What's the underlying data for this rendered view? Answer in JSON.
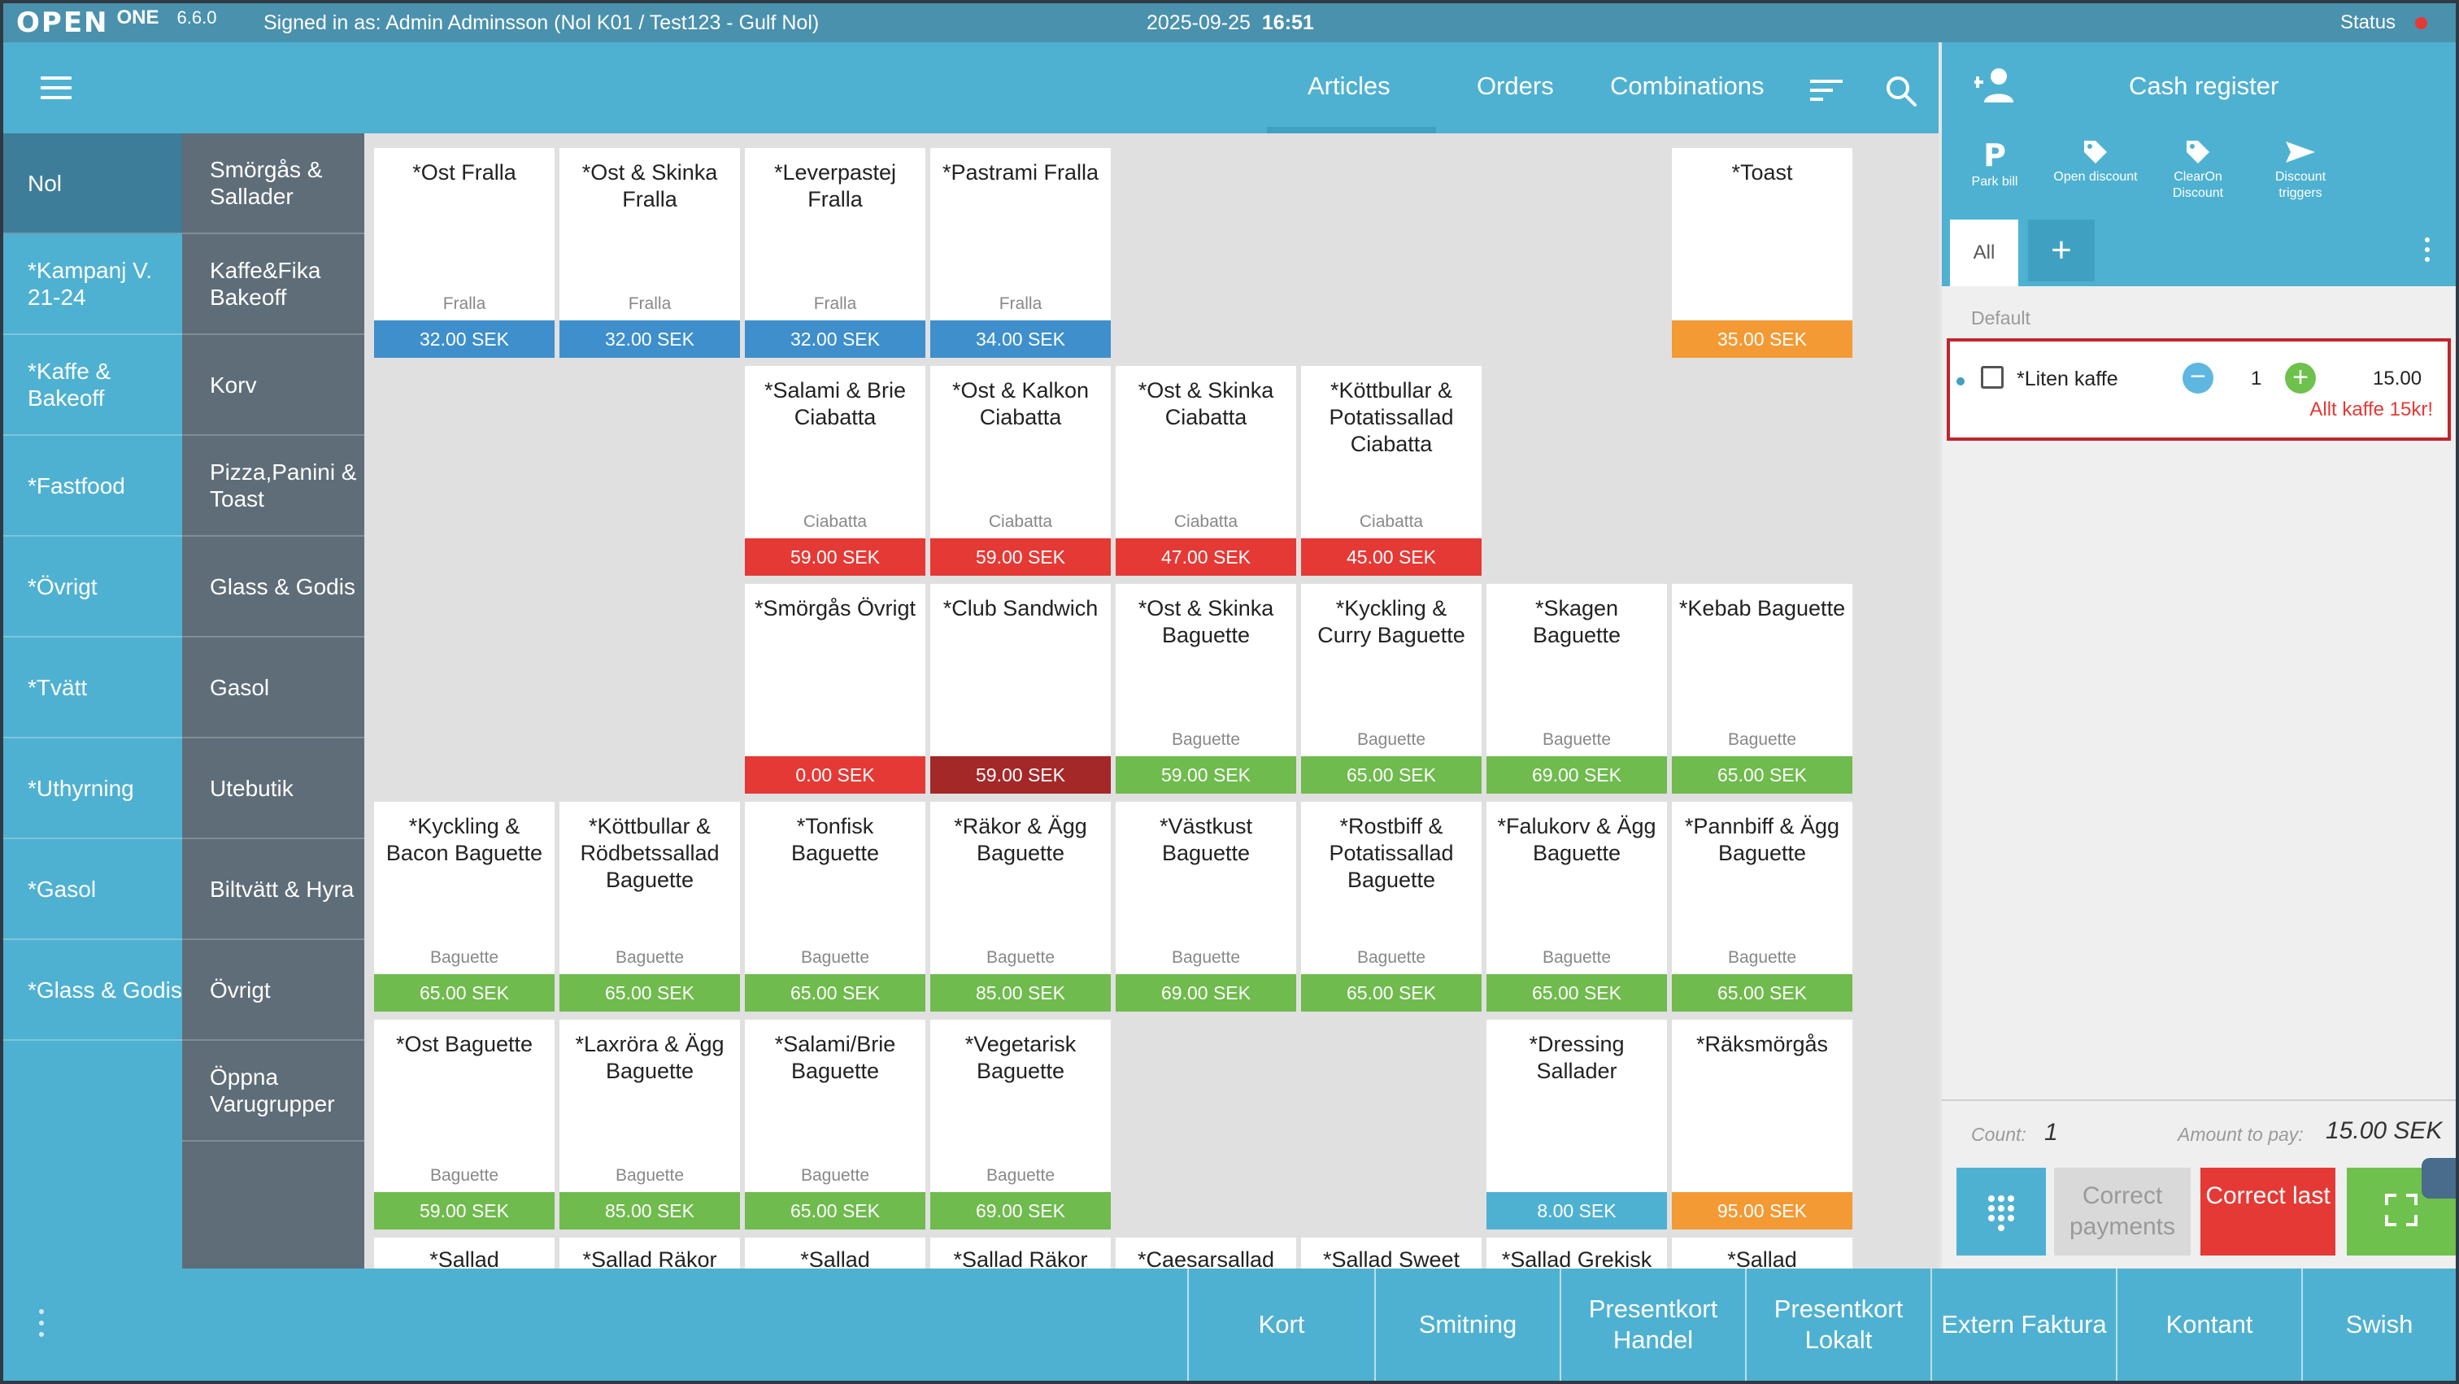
{
  "status_bar": {
    "logo_text": "OPEN",
    "product": "ONE",
    "version": "6.6.0",
    "signed_in": "Signed in as: Admin Adminsson (Nol K01 / Test123 - Gulf Nol)",
    "date": "2025-09-25",
    "time": "16:51",
    "status_label": "Status",
    "status_color": "#e53935"
  },
  "header": {
    "tabs": {
      "articles": "Articles",
      "orders": "Orders",
      "combinations": "Combinations"
    },
    "active_tab": "Articles"
  },
  "categories_left": [
    "Nol",
    "*Kampanj V. 21-24",
    "*Kaffe & Bakeoff",
    "*Fastfood",
    "*Övrigt",
    "*Tvätt",
    "*Uthyrning",
    "*Gasol",
    "*Glass & Godis"
  ],
  "categories_right": [
    "Smörgås & Sallader",
    "Kaffe&Fika Bakeoff",
    "Korv",
    "Pizza,Panini & Toast",
    "Glass & Godis",
    "Gasol",
    "Utebutik",
    "Biltvätt & Hyra",
    "Övrigt",
    "Öppna Varugrupper"
  ],
  "articles": [
    {
      "name": "*Ost Fralla",
      "group": "Fralla",
      "price": "32.00 SEK",
      "color": "blue"
    },
    {
      "name": "*Ost & Skinka Fralla",
      "group": "Fralla",
      "price": "32.00 SEK",
      "color": "blue"
    },
    {
      "name": "*Leverpastej Fralla",
      "group": "Fralla",
      "price": "32.00 SEK",
      "color": "blue"
    },
    {
      "name": "*Pastrami Fralla",
      "group": "Fralla",
      "price": "34.00 SEK",
      "color": "blue"
    },
    {
      "name": "*Toast",
      "group": "",
      "price": "35.00 SEK",
      "color": "orange"
    },
    {
      "name": "*Salami & Brie Ciabatta",
      "group": "Ciabatta",
      "price": "59.00 SEK",
      "color": "red"
    },
    {
      "name": "*Ost & Kalkon Ciabatta",
      "group": "Ciabatta",
      "price": "59.00 SEK",
      "color": "red"
    },
    {
      "name": "*Ost & Skinka Ciabatta",
      "group": "Ciabatta",
      "price": "47.00 SEK",
      "color": "red"
    },
    {
      "name": "*Köttbullar & Potatissallad Ciabatta",
      "group": "Ciabatta",
      "price": "45.00 SEK",
      "color": "red"
    },
    {
      "name": "*Smörgås Övrigt",
      "group": "",
      "price": "0.00 SEK",
      "color": "red"
    },
    {
      "name": "*Club Sandwich",
      "group": "",
      "price": "59.00 SEK",
      "color": "dark"
    },
    {
      "name": "*Ost & Skinka Baguette",
      "group": "Baguette",
      "price": "59.00 SEK",
      "color": "green"
    },
    {
      "name": "*Kyckling & Curry Baguette",
      "group": "Baguette",
      "price": "65.00 SEK",
      "color": "green"
    },
    {
      "name": "*Skagen Baguette",
      "group": "Baguette",
      "price": "69.00 SEK",
      "color": "green"
    },
    {
      "name": "*Kebab Baguette",
      "group": "Baguette",
      "price": "65.00 SEK",
      "color": "green"
    },
    {
      "name": "*Kyckling & Bacon Baguette",
      "group": "Baguette",
      "price": "65.00 SEK",
      "color": "green"
    },
    {
      "name": "*Köttbullar & Rödbetssallad Baguette",
      "group": "Baguette",
      "price": "65.00 SEK",
      "color": "green"
    },
    {
      "name": "*Tonfisk Baguette",
      "group": "Baguette",
      "price": "65.00 SEK",
      "color": "green"
    },
    {
      "name": "*Räkor & Ägg Baguette",
      "group": "Baguette",
      "price": "85.00 SEK",
      "color": "green"
    },
    {
      "name": "*Västkust Baguette",
      "group": "Baguette",
      "price": "69.00 SEK",
      "color": "green"
    },
    {
      "name": "*Rostbiff & Potatissallad Baguette",
      "group": "Baguette",
      "price": "65.00 SEK",
      "color": "green"
    },
    {
      "name": "*Falukorv & Ägg Baguette",
      "group": "Baguette",
      "price": "65.00 SEK",
      "color": "green"
    },
    {
      "name": "*Pannbiff & Ägg Baguette",
      "group": "Baguette",
      "price": "65.00 SEK",
      "color": "green"
    },
    {
      "name": "*Ost Baguette",
      "group": "Baguette",
      "price": "59.00 SEK",
      "color": "green"
    },
    {
      "name": "*Laxröra & Ägg Baguette",
      "group": "Baguette",
      "price": "85.00 SEK",
      "color": "green"
    },
    {
      "name": "*Salami/Brie Baguette",
      "group": "Baguette",
      "price": "65.00 SEK",
      "color": "green"
    },
    {
      "name": "*Vegetarisk Baguette",
      "group": "Baguette",
      "price": "69.00 SEK",
      "color": "green"
    },
    {
      "name": "*Dressing Sallader",
      "group": "",
      "price": "8.00 SEK",
      "color": "cyan"
    },
    {
      "name": "*Räksmörgås",
      "group": "",
      "price": "95.00 SEK",
      "color": "orange"
    }
  ],
  "articles_partial": [
    "*Sallad",
    "*Sallad Räkor",
    "*Sallad",
    "*Sallad Räkor",
    "*Caesarsallad",
    "*Sallad Sweet",
    "*Sallad Grekisk",
    "*Sallad"
  ],
  "register": {
    "title": "Cash register",
    "actions": {
      "park": "Park bill",
      "open_discount": "Open discount",
      "clearon": "ClearOn Discount",
      "discount_triggers": "Discount triggers"
    },
    "tab_all": "All",
    "group_label": "Default",
    "line": {
      "name": "*Liten kaffe",
      "qty": "1",
      "price": "15.00",
      "discount": "Allt kaffe 15kr!"
    },
    "count_label": "Count:",
    "count": "1",
    "amount_label": "Amount to pay:",
    "amount": "15.00 SEK",
    "correct_payments": "Correct payments",
    "correct_last": "Correct last"
  },
  "payments": [
    "Kort",
    "Smitning",
    "Presentkort Handel",
    "Presentkort Lokalt",
    "Extern Faktura",
    "Kontant",
    "Swish"
  ]
}
